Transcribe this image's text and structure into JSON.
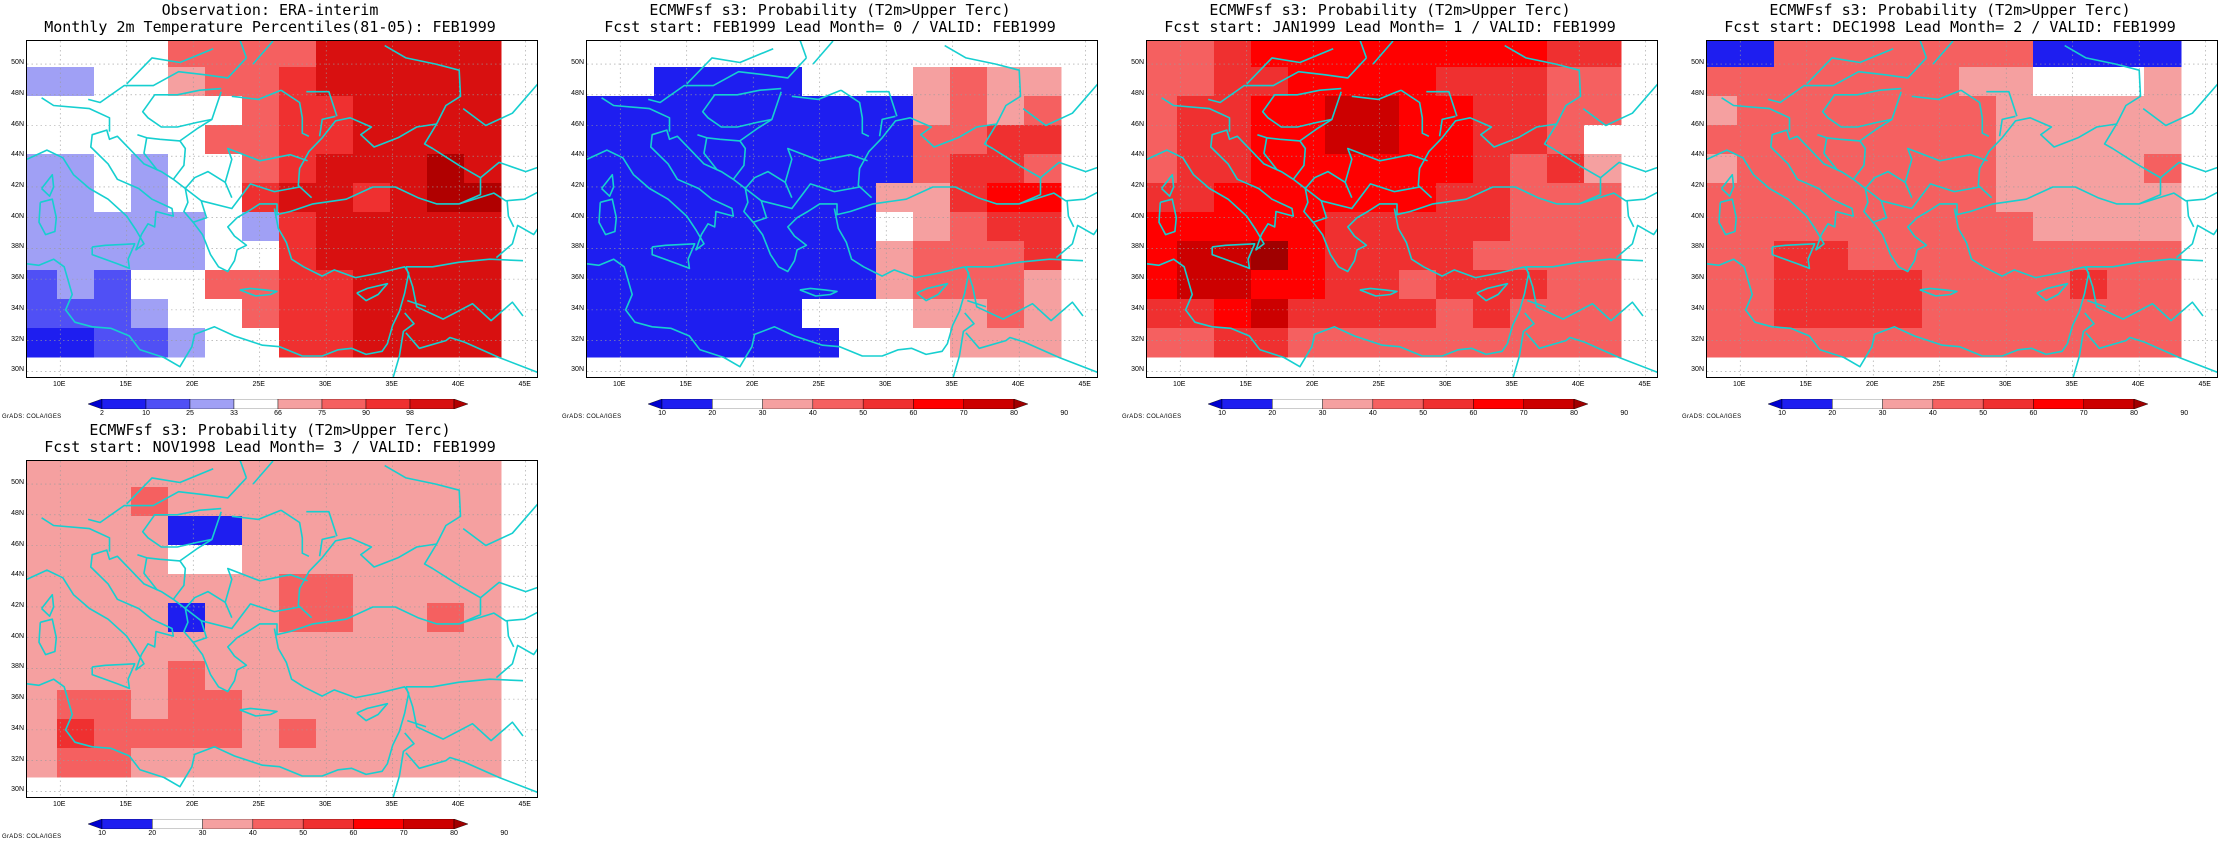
{
  "credit": "GrADS: COLA/IGES",
  "lat_labels": [
    "50N",
    "48N",
    "46N",
    "44N",
    "42N",
    "40N",
    "38N",
    "36N",
    "34N",
    "32N",
    "30N"
  ],
  "lon_labels": [
    "10E",
    "15E",
    "20E",
    "25E",
    "30E",
    "35E",
    "40E",
    "45E"
  ],
  "colors": {
    "coastline": "#16cfd0",
    "grid": "#9a9a9a",
    "palette_obs": [
      "#0000cf",
      "#1e1ef0",
      "#5050f5",
      "#a0a0f5",
      "#ffffff",
      "#f5a0a0",
      "#f56060",
      "#ef3030",
      "#d81010",
      "#b00000"
    ],
    "palette_prob": [
      "#0000cf",
      "#1e1ef0",
      "#ffffff",
      "#f5a0a0",
      "#f56060",
      "#ef3030",
      "#ff0000",
      "#cc0000",
      "#a00000"
    ]
  },
  "panels": [
    {
      "title_line1": "Observation: ERA-interim",
      "title_line2": "Monthly 2m Temperature Percentiles(81-05): FEB1999",
      "colorbar_labels": [
        "2",
        "10",
        "25",
        "33",
        "66",
        "75",
        "90",
        "98"
      ],
      "palette": "obs",
      "grid": [
        "4444666688888",
        "3344566788888",
        "4444446778888",
        "4444466778888",
        "3343446788898",
        "3343447887899",
        "3333343788888",
        "3333344788888",
        "2324466778888",
        "2223446778888",
        "1122344778888"
      ]
    },
    {
      "title_line1": "ECMWFsf s3: Probability (T2m>Upper Terc)",
      "title_line2": "Fcst start: FEB1999  Lead Month= 0 / VALID: FEB1999",
      "colorbar_labels": [
        "10",
        "20",
        "30",
        "40",
        "50",
        "60",
        "70",
        "80",
        "90"
      ],
      "palette": "prob",
      "grid": [
        "2222222222222",
        "2211112223433",
        "1111111113434",
        "1111111114455",
        "1111111114554",
        "1111111133566",
        "1111111123455",
        "1111111134445",
        "1111111134443",
        "1111112223343",
        "1111111222333"
      ]
    },
    {
      "title_line1": "ECMWFsf s3: Probability (T2m>Upper Terc)",
      "title_line2": "Fcst start: JAN1999  Lead Month= 1 / VALID: FEB1999",
      "colorbar_labels": [
        "10",
        "20",
        "30",
        "40",
        "50",
        "60",
        "70",
        "80",
        "90"
      ],
      "palette": "prob",
      "grid": [
        "4456666666655",
        "4455666655544",
        "4556677665544",
        "4556677665542",
        "4556666665453",
        "5566666655444",
        "6666655555444",
        "6778655554444",
        "6776655455544",
        "5567555545444",
        "4455444444444"
      ]
    },
    {
      "title_line1": "ECMWFsf s3: Probability (T2m>Upper Terc)",
      "title_line2": "Fcst start: DEC1998  Lead Month= 2 / VALID: FEB1999",
      "colorbar_labels": [
        "10",
        "20",
        "30",
        "40",
        "50",
        "60",
        "70",
        "80",
        "90"
      ],
      "palette": "prob",
      "grid": [
        "1144444441111",
        "4444444332223",
        "3444444433333",
        "4444444433333",
        "3444444433334",
        "4444444433333",
        "4444444443333",
        "4455444444444",
        "4455554444544",
        "4455554444444",
        "4444444444444"
      ]
    },
    {
      "title_line1": "ECMWFsf s3: Probability (T2m>Upper Terc)",
      "title_line2": "Fcst start: NOV1998  Lead Month= 3 / VALID: FEB1999",
      "colorbar_labels": [
        "10",
        "20",
        "30",
        "40",
        "50",
        "60",
        "70",
        "80",
        "90"
      ],
      "palette": "prob",
      "grid": [
        "3333333333333",
        "3334333333333",
        "3333113333333",
        "3333223333333",
        "3333333443333",
        "3333133443343",
        "3333333333333",
        "3333433333333",
        "3443443333333",
        "3544443433333",
        "3443333333333"
      ]
    }
  ]
}
